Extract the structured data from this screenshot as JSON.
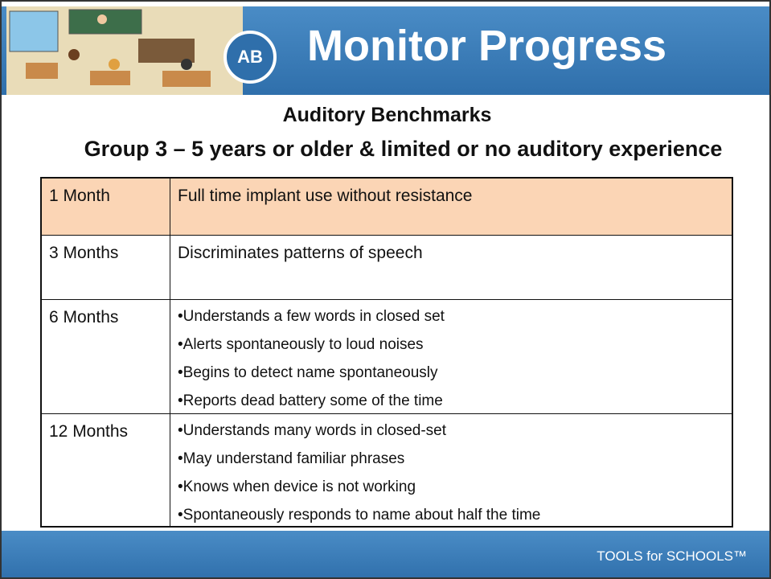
{
  "header": {
    "logo": "AB",
    "title": "Monitor Progress"
  },
  "heading": {
    "title": "Auditory Benchmarks",
    "subtitle": "Group 3 – 5 years or older & limited or no auditory experience"
  },
  "table": {
    "rows": [
      {
        "period": "1 Month",
        "items": [
          "Full time implant use without resistance"
        ]
      },
      {
        "period": "3 Months",
        "items": [
          "Discriminates patterns of speech"
        ]
      },
      {
        "period": "6 Months",
        "items": [
          "•Understands a few words in closed set",
          "•Alerts spontaneously to loud noises",
          "•Begins to detect name spontaneously",
          "•Reports dead battery some of the time"
        ]
      },
      {
        "period": "12 Months",
        "items": [
          "•Understands many words in closed-set",
          "•May understand familiar phrases",
          "•Knows when device is not working",
          "•Spontaneously responds to name about half the time"
        ]
      }
    ]
  },
  "footer": {
    "brand": "TOOLS for SCHOOLS™"
  }
}
